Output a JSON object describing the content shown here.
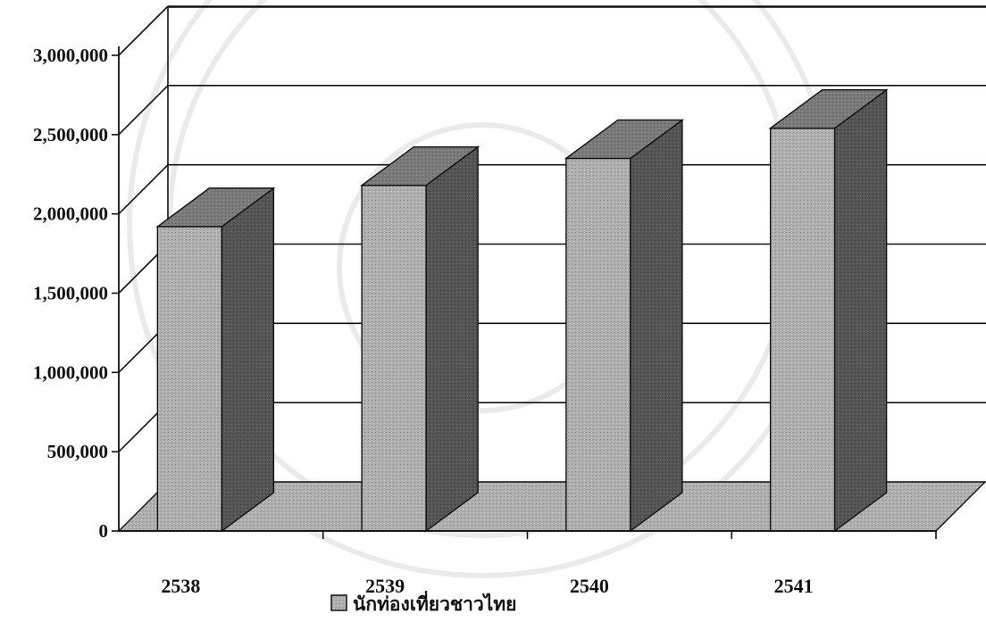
{
  "chart_data": {
    "type": "bar",
    "style": "3d-column",
    "title": "",
    "xlabel": "",
    "ylabel": "",
    "categories": [
      "2538",
      "2539",
      "2540",
      "2541"
    ],
    "series": [
      {
        "name": "นักท่องเที่ยวชาวไทย",
        "values": [
          1920000,
          2180000,
          2350000,
          2540000
        ],
        "color": "#b3b3b3"
      }
    ],
    "yticks": [
      "0",
      "500,000",
      "1,000,000",
      "1,500,000",
      "2,000,000",
      "2,500,000",
      "3,000,000"
    ],
    "ylim": [
      0,
      3000000
    ],
    "grid": true,
    "legend": "bottom-center",
    "watermark": "university seal (faint, background)"
  }
}
